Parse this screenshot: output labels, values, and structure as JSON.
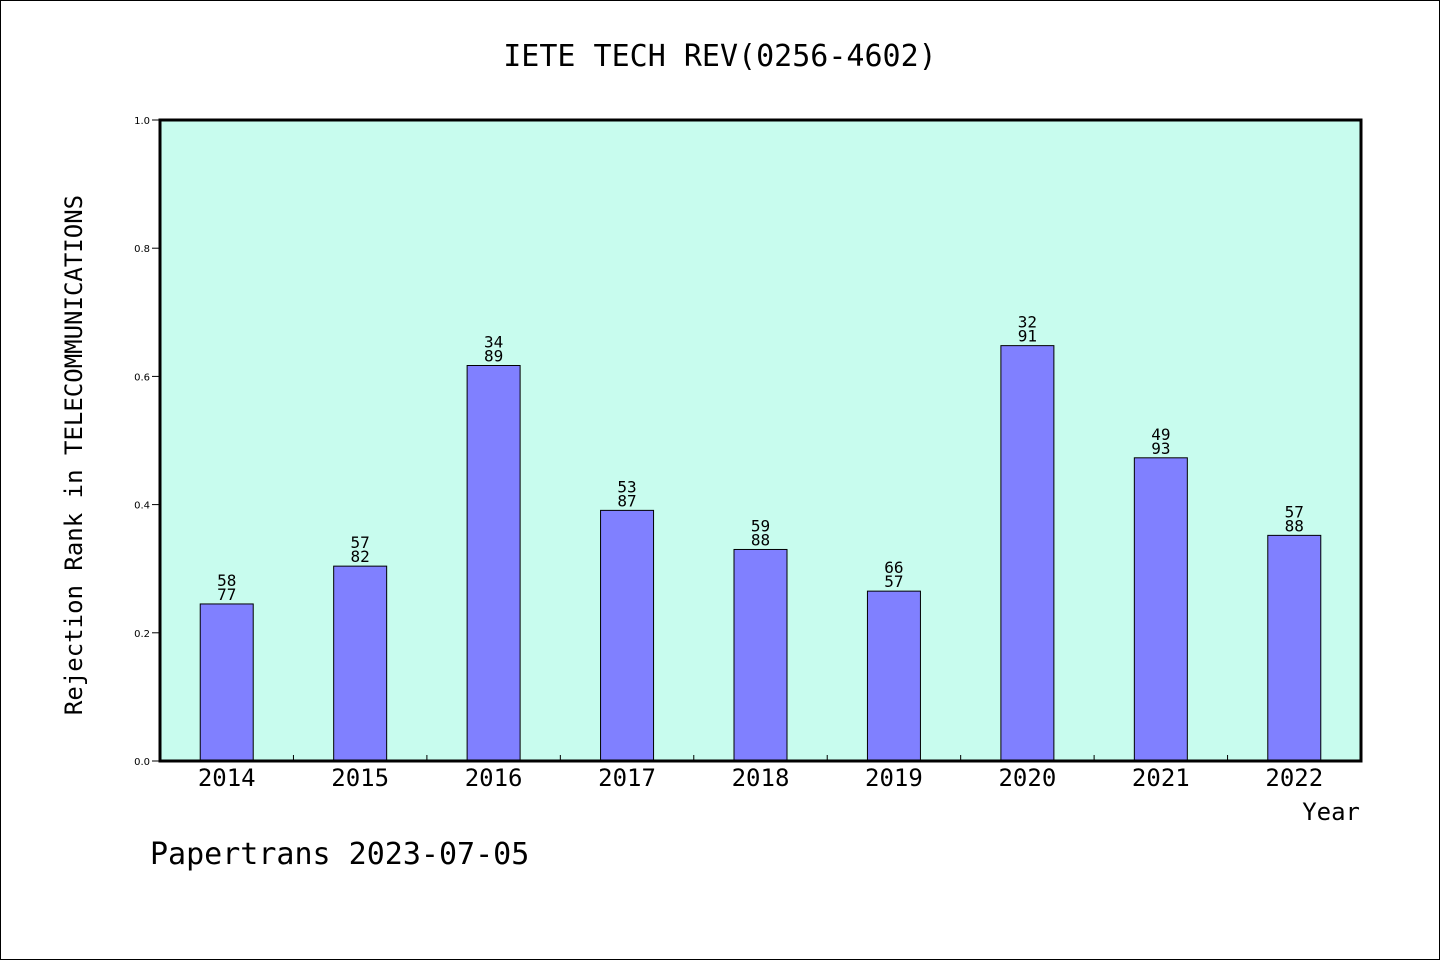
{
  "chart_data": {
    "type": "bar",
    "title": "IETE TECH REV(0256-4602)",
    "xlabel": "Year",
    "ylabel": "Rejection Rank in TELECOMMUNICATIONS",
    "ylim": [
      0,
      1.0
    ],
    "yticks": [
      "0.0",
      "0.2",
      "0.4",
      "0.6",
      "0.8",
      "1.0"
    ],
    "categories": [
      "2014",
      "2015",
      "2016",
      "2017",
      "2018",
      "2019",
      "2020",
      "2021",
      "2022"
    ],
    "values": [
      0.245,
      0.304,
      0.617,
      0.391,
      0.33,
      0.265,
      0.648,
      0.473,
      0.352
    ],
    "labels": [
      [
        "58",
        "77"
      ],
      [
        "57",
        "82"
      ],
      [
        "34",
        "89"
      ],
      [
        "53",
        "87"
      ],
      [
        "59",
        "88"
      ],
      [
        "66",
        "57"
      ],
      [
        "32",
        "91"
      ],
      [
        "49",
        "93"
      ],
      [
        "57",
        "88"
      ]
    ],
    "grid": false,
    "legend": "none"
  },
  "colors": {
    "plot_background": "#c8fcee",
    "bar_fill": "#8080ff",
    "bar_stroke": "#000000",
    "axis": "#000000"
  },
  "footer": "Papertrans 2023-07-05"
}
